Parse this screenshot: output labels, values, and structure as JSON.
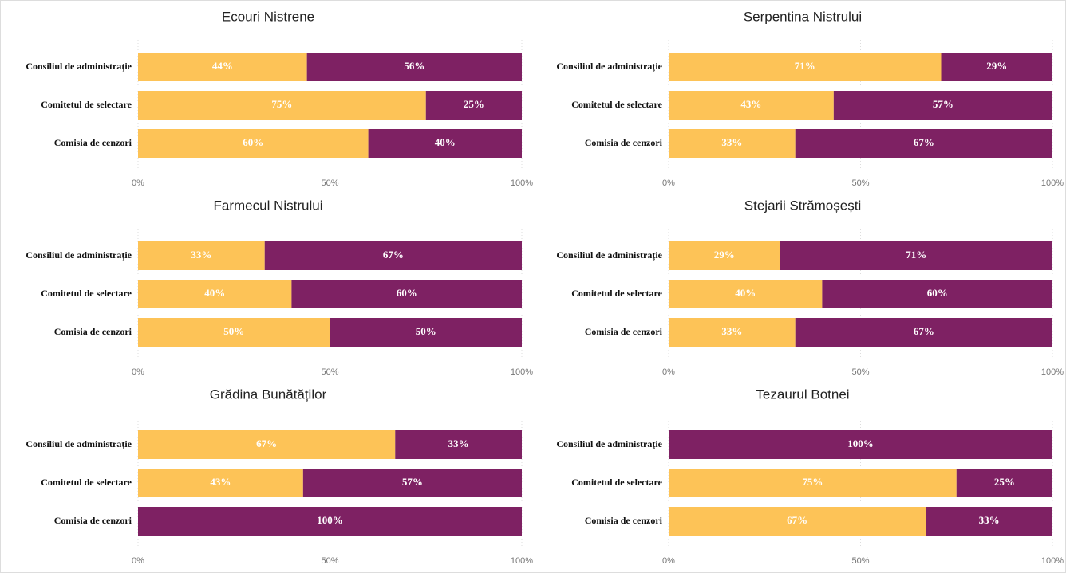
{
  "chart_data": [
    {
      "type": "bar",
      "orientation": "horizontal",
      "stacked": true,
      "title": "Ecouri Nistrene",
      "categories": [
        "Consiliul de administrație",
        "Comitetul de selectare",
        "Comisia de cenzori"
      ],
      "series": [
        {
          "color": "#FDC357",
          "values": [
            44,
            75,
            60
          ],
          "value_labels": [
            "44%",
            "75%",
            "60%"
          ]
        },
        {
          "color": "#7E2163",
          "values": [
            56,
            25,
            40
          ],
          "value_labels": [
            "56%",
            "25%",
            "40%"
          ]
        }
      ],
      "xlim": [
        0,
        100
      ],
      "xticks": [
        {
          "value": 0,
          "label": "0%"
        },
        {
          "value": 50,
          "label": "50%"
        },
        {
          "value": 100,
          "label": "100%"
        }
      ],
      "grid": true
    },
    {
      "type": "bar",
      "orientation": "horizontal",
      "stacked": true,
      "title": "Serpentina Nistrului",
      "categories": [
        "Consiliul de administrație",
        "Comitetul de selectare",
        "Comisia de cenzori"
      ],
      "series": [
        {
          "color": "#FDC357",
          "values": [
            71,
            43,
            33
          ],
          "value_labels": [
            "71%",
            "43%",
            "33%"
          ]
        },
        {
          "color": "#7E2163",
          "values": [
            29,
            57,
            67
          ],
          "value_labels": [
            "29%",
            "57%",
            "67%"
          ]
        }
      ],
      "xlim": [
        0,
        100
      ],
      "xticks": [
        {
          "value": 0,
          "label": "0%"
        },
        {
          "value": 50,
          "label": "50%"
        },
        {
          "value": 100,
          "label": "100%"
        }
      ],
      "grid": true
    },
    {
      "type": "bar",
      "orientation": "horizontal",
      "stacked": true,
      "title": "Farmecul Nistrului",
      "categories": [
        "Consiliul de administrație",
        "Comitetul de selectare",
        "Comisia de cenzori"
      ],
      "series": [
        {
          "color": "#FDC357",
          "values": [
            33,
            40,
            50
          ],
          "value_labels": [
            "33%",
            "40%",
            "50%"
          ]
        },
        {
          "color": "#7E2163",
          "values": [
            67,
            60,
            50
          ],
          "value_labels": [
            "67%",
            "60%",
            "50%"
          ]
        }
      ],
      "xlim": [
        0,
        100
      ],
      "xticks": [
        {
          "value": 0,
          "label": "0%"
        },
        {
          "value": 50,
          "label": "50%"
        },
        {
          "value": 100,
          "label": "100%"
        }
      ],
      "grid": true
    },
    {
      "type": "bar",
      "orientation": "horizontal",
      "stacked": true,
      "title": "Stejarii Strămoșești",
      "categories": [
        "Consiliul de administrație",
        "Comitetul de selectare",
        "Comisia de cenzori"
      ],
      "series": [
        {
          "color": "#FDC357",
          "values": [
            29,
            40,
            33
          ],
          "value_labels": [
            "29%",
            "40%",
            "33%"
          ]
        },
        {
          "color": "#7E2163",
          "values": [
            71,
            60,
            67
          ],
          "value_labels": [
            "71%",
            "60%",
            "67%"
          ]
        }
      ],
      "xlim": [
        0,
        100
      ],
      "xticks": [
        {
          "value": 0,
          "label": "0%"
        },
        {
          "value": 50,
          "label": "50%"
        },
        {
          "value": 100,
          "label": "100%"
        }
      ],
      "grid": true
    },
    {
      "type": "bar",
      "orientation": "horizontal",
      "stacked": true,
      "title": "Grădina Bunătăților",
      "categories": [
        "Consiliul de administrație",
        "Comitetul de selectare",
        "Comisia de cenzori"
      ],
      "series": [
        {
          "color": "#FDC357",
          "values": [
            67,
            43,
            0
          ],
          "value_labels": [
            "67%",
            "43%",
            null
          ]
        },
        {
          "color": "#7E2163",
          "values": [
            33,
            57,
            100
          ],
          "value_labels": [
            "33%",
            "57%",
            "100%"
          ]
        }
      ],
      "xlim": [
        0,
        100
      ],
      "xticks": [
        {
          "value": 0,
          "label": "0%"
        },
        {
          "value": 50,
          "label": "50%"
        },
        {
          "value": 100,
          "label": "100%"
        }
      ],
      "grid": true
    },
    {
      "type": "bar",
      "orientation": "horizontal",
      "stacked": true,
      "title": "Tezaurul Botnei",
      "categories": [
        "Consiliul de administrație",
        "Comitetul de selectare",
        "Comisia de cenzori"
      ],
      "series": [
        {
          "color": "#FDC357",
          "values": [
            0,
            75,
            67
          ],
          "value_labels": [
            null,
            "75%",
            "67%"
          ]
        },
        {
          "color": "#7E2163",
          "values": [
            100,
            25,
            33
          ],
          "value_labels": [
            "100%",
            "25%",
            "33%"
          ]
        }
      ],
      "xlim": [
        0,
        100
      ],
      "xticks": [
        {
          "value": 0,
          "label": "0%"
        },
        {
          "value": 50,
          "label": "50%"
        },
        {
          "value": 100,
          "label": "100%"
        }
      ],
      "grid": true
    }
  ]
}
